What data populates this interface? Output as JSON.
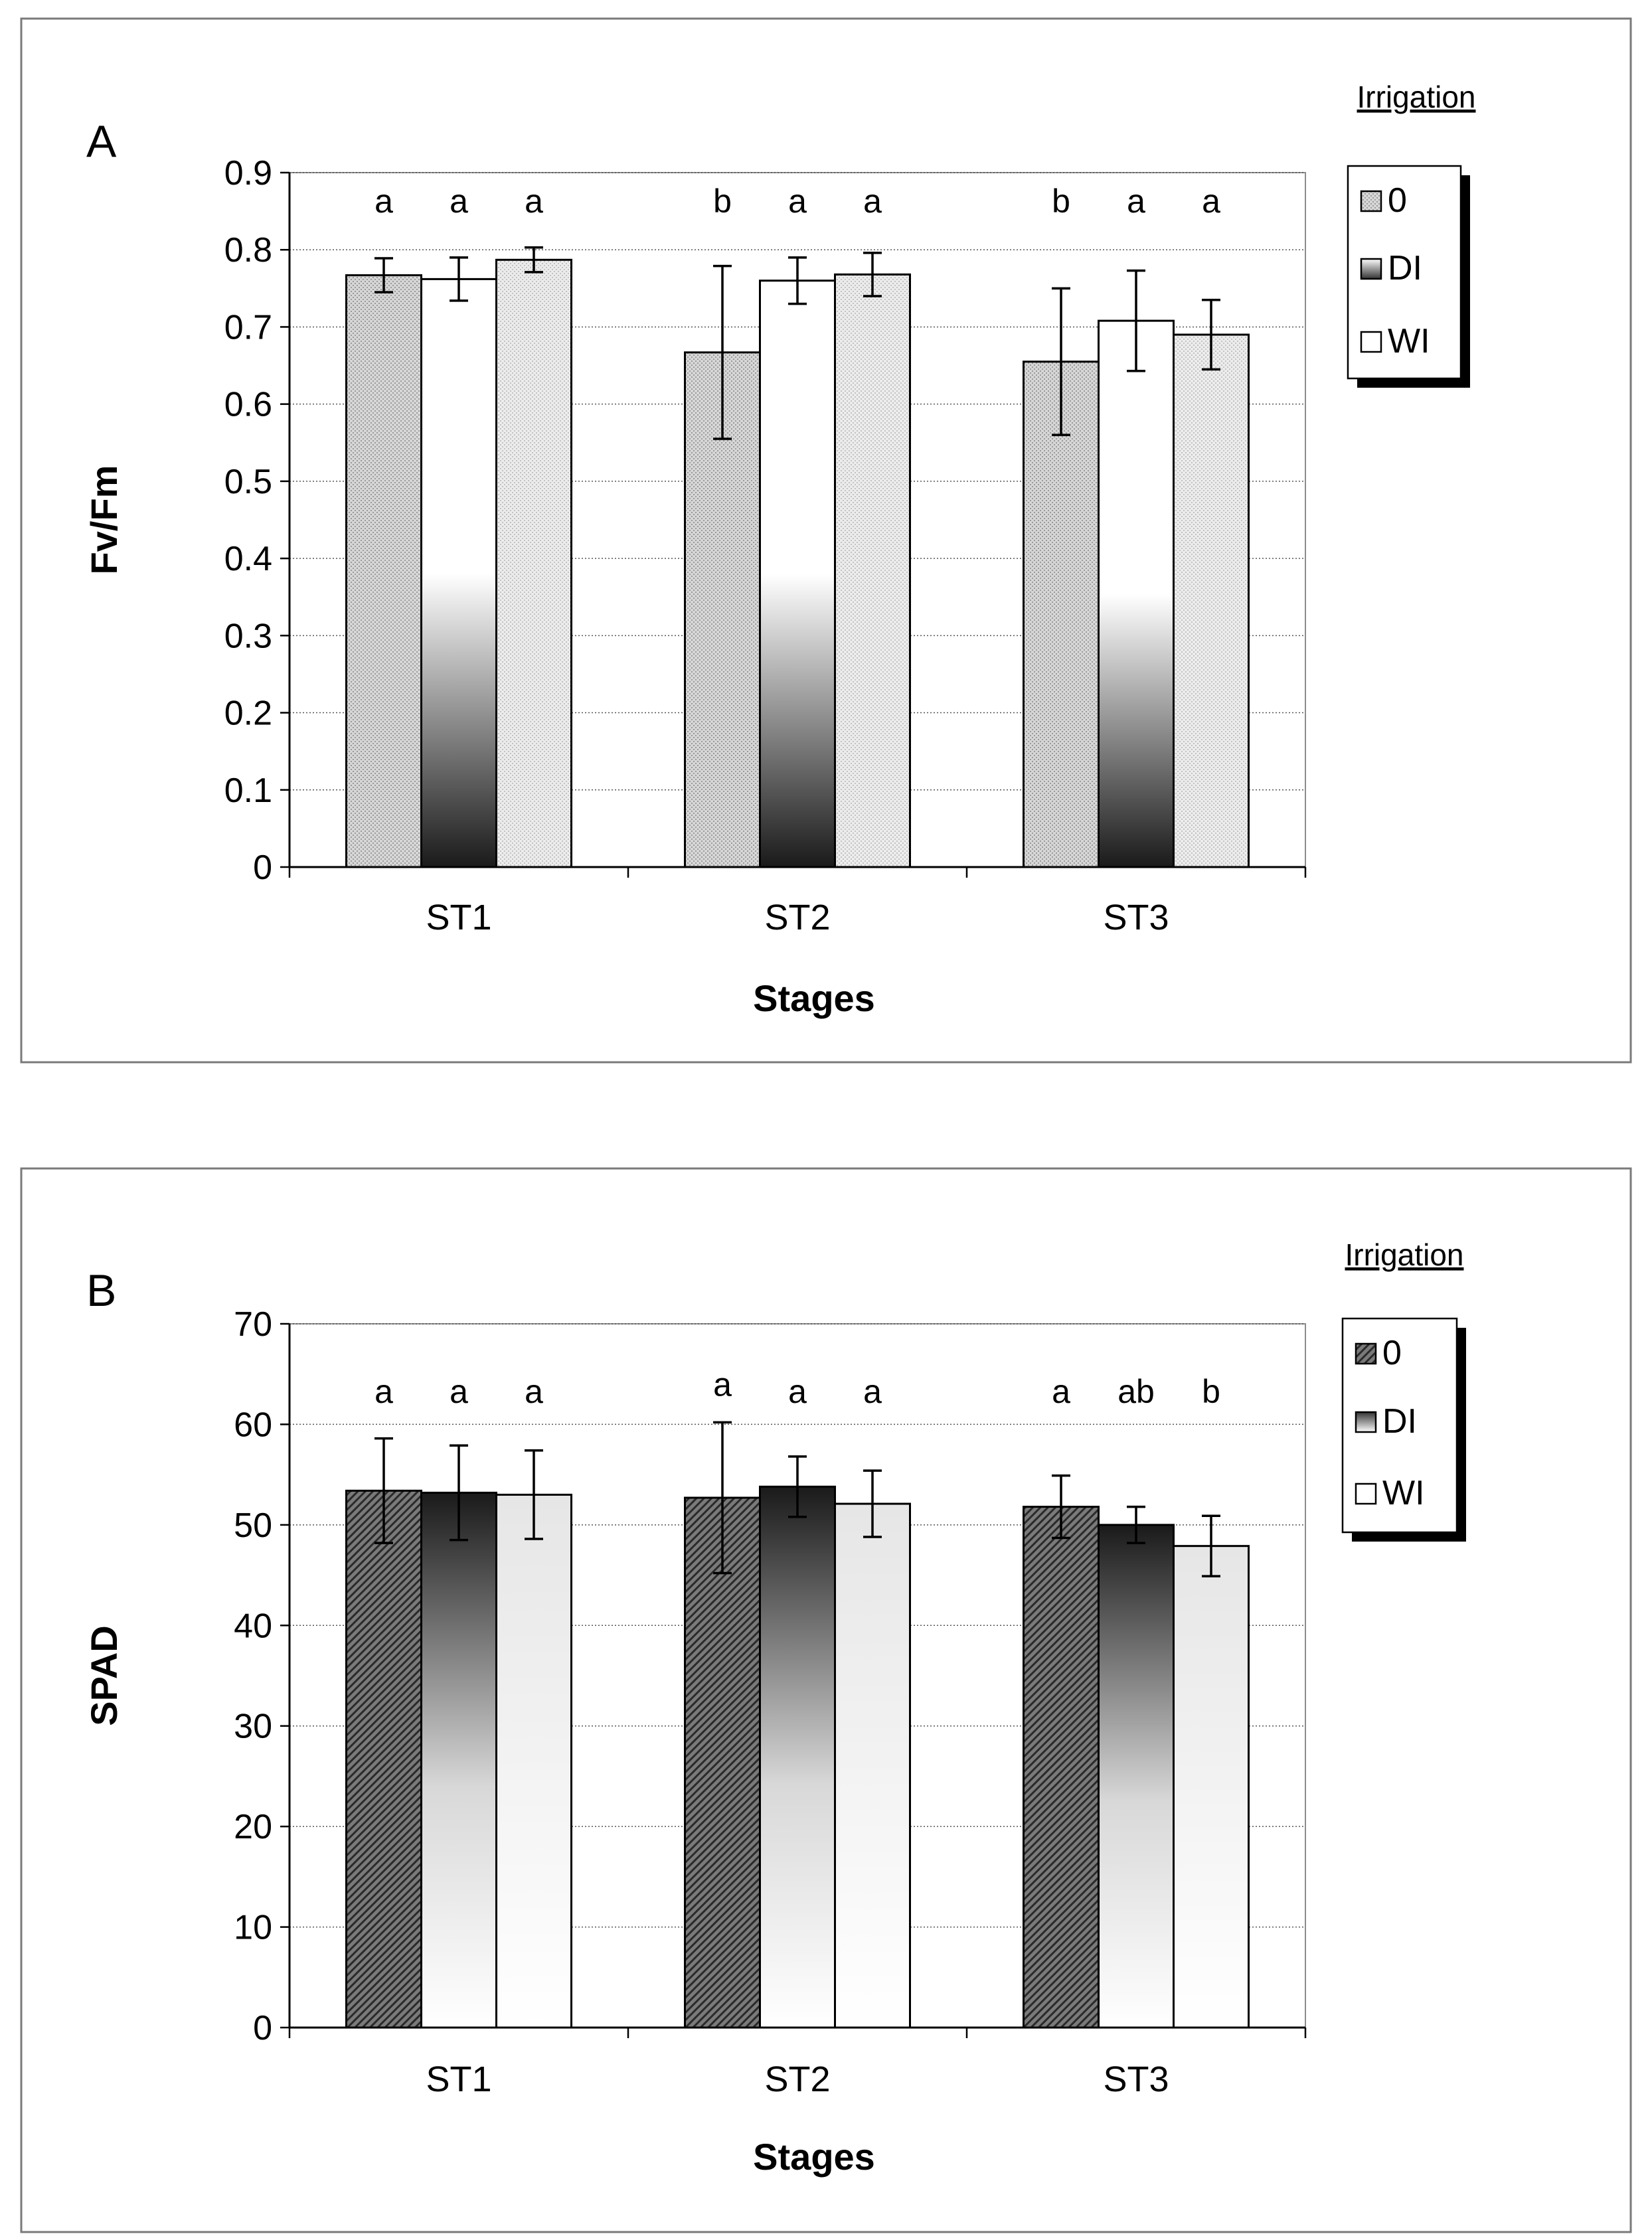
{
  "colors": {
    "frame": "#7a7a7a",
    "grid": "#555555",
    "axis": "#000000",
    "bar_outline": "#000000",
    "dark": "#1e1e1e",
    "light": "#ffffff",
    "stipple": "#d9d9d9"
  },
  "chart_data": [
    {
      "type": "bar",
      "panel_label": "A",
      "title": "",
      "xlabel": "Stages",
      "ylabel": "Fv/Fm",
      "ylim": [
        0,
        0.9
      ],
      "yticks": [
        "0",
        "0.1",
        "0.2",
        "0.3",
        "0.4",
        "0.5",
        "0.6",
        "0.7",
        "0.8",
        "0.9"
      ],
      "ytick_values": [
        0,
        0.1,
        0.2,
        0.3,
        0.4,
        0.5,
        0.6,
        0.7,
        0.8,
        0.9
      ],
      "grid": true,
      "categories": [
        "ST1",
        "ST2",
        "ST3"
      ],
      "legend_title": "Irrigation",
      "legend_position": "top-right",
      "series": [
        {
          "name": "0",
          "values": [
            0.767,
            0.667,
            0.655
          ],
          "errors": [
            0.022,
            0.112,
            0.095
          ],
          "letters": [
            "a",
            "b",
            "b"
          ]
        },
        {
          "name": "DI",
          "values": [
            0.762,
            0.76,
            0.708
          ],
          "errors": [
            0.028,
            0.03,
            0.065
          ],
          "letters": [
            "a",
            "a",
            "a"
          ]
        },
        {
          "name": "WI",
          "values": [
            0.787,
            0.768,
            0.69
          ],
          "errors": [
            0.016,
            0.028,
            0.045
          ],
          "letters": [
            "a",
            "a",
            "a"
          ]
        }
      ]
    },
    {
      "type": "bar",
      "panel_label": "B",
      "title": "",
      "xlabel": "Stages",
      "ylabel": "SPAD",
      "ylim": [
        0,
        70
      ],
      "yticks": [
        "0",
        "10",
        "20",
        "30",
        "40",
        "50",
        "60",
        "70"
      ],
      "ytick_values": [
        0,
        10,
        20,
        30,
        40,
        50,
        60,
        70
      ],
      "grid": true,
      "categories": [
        "ST1",
        "ST2",
        "ST3"
      ],
      "legend_title": "Irrigation",
      "legend_position": "top-right",
      "series": [
        {
          "name": "0",
          "values": [
            53.4,
            52.7,
            51.8
          ],
          "errors": [
            5.2,
            7.5,
            3.1
          ],
          "letters": [
            "a",
            "a",
            "a"
          ]
        },
        {
          "name": "DI",
          "values": [
            53.2,
            53.8,
            50.0
          ],
          "errors": [
            4.7,
            3.0,
            1.8
          ],
          "letters": [
            "a",
            "a",
            "ab"
          ]
        },
        {
          "name": "WI",
          "values": [
            53.0,
            52.1,
            47.9
          ],
          "errors": [
            4.4,
            3.3,
            3.0
          ],
          "letters": [
            "a",
            "a",
            "b"
          ]
        }
      ]
    }
  ]
}
